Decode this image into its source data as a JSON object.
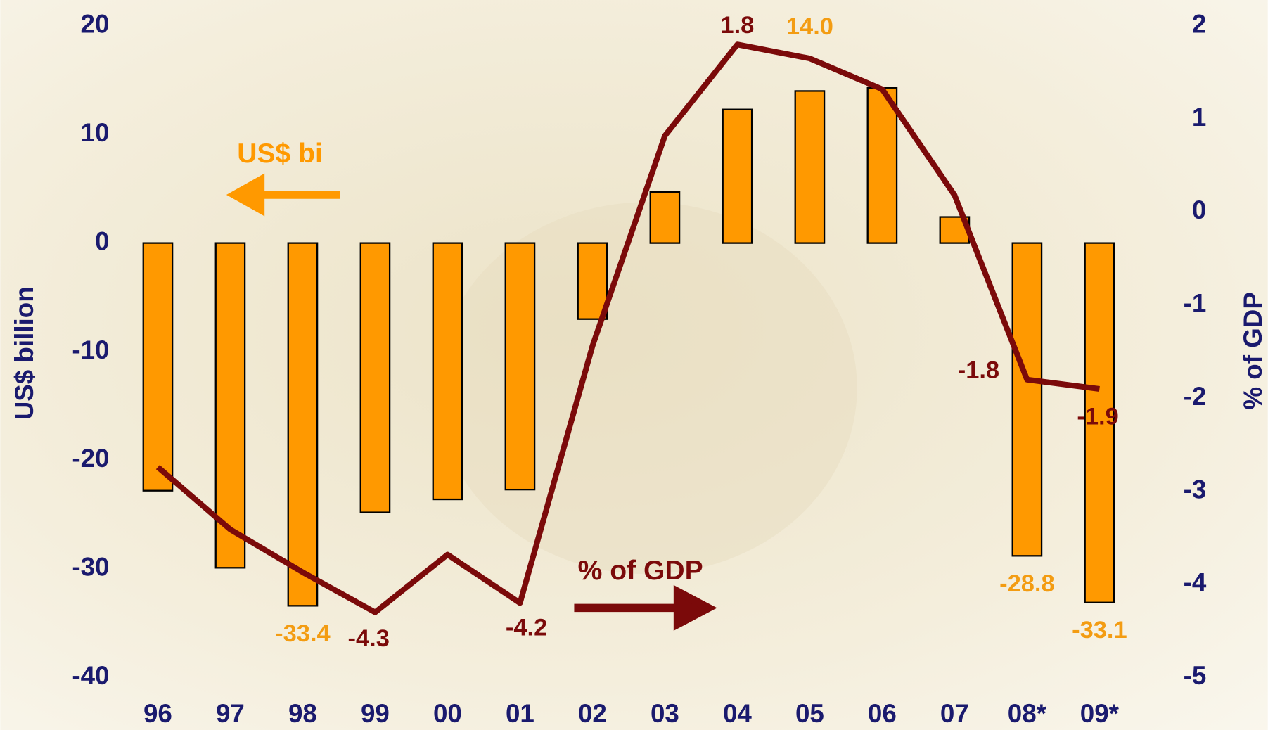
{
  "chart_data": {
    "type": "bar+line",
    "categories": [
      "96",
      "97",
      "98",
      "99",
      "00",
      "01",
      "02",
      "03",
      "04",
      "05",
      "06",
      "07",
      "08*",
      "09*"
    ],
    "series": [
      {
        "name": "US$ bi",
        "type": "bar",
        "axis": "y",
        "color": "#ff9900",
        "values": [
          -22.8,
          -29.9,
          -33.4,
          -24.8,
          -23.6,
          -22.7,
          -7.0,
          4.7,
          12.3,
          14.0,
          14.3,
          2.4,
          -28.8,
          -33.1
        ],
        "value_labels": [
          null,
          null,
          "-33.4",
          null,
          null,
          null,
          null,
          null,
          null,
          "14.0",
          null,
          null,
          "-28.8",
          "-33.1"
        ]
      },
      {
        "name": "% of GDP",
        "type": "line",
        "axis": "y2",
        "color": "#7b0a0a",
        "values": [
          -2.74,
          -3.41,
          -3.87,
          -4.3,
          -3.68,
          -4.2,
          -1.44,
          0.82,
          1.8,
          1.65,
          1.32,
          0.18,
          -1.8,
          -1.9
        ],
        "value_labels": [
          null,
          null,
          null,
          "-4.3",
          null,
          "-4.2",
          null,
          null,
          "1.8",
          null,
          null,
          null,
          "-1.8",
          "-1.9"
        ]
      }
    ],
    "y_label": "US$ billion",
    "y2_label": "% of GDP",
    "ylim": [
      -40,
      20
    ],
    "yticks": [
      -40,
      -30,
      -20,
      -10,
      0,
      10,
      20
    ],
    "y2lim": [
      -5,
      2
    ],
    "y2ticks": [
      -5,
      -4,
      -3,
      -2,
      -1,
      0,
      1,
      2
    ]
  }
}
